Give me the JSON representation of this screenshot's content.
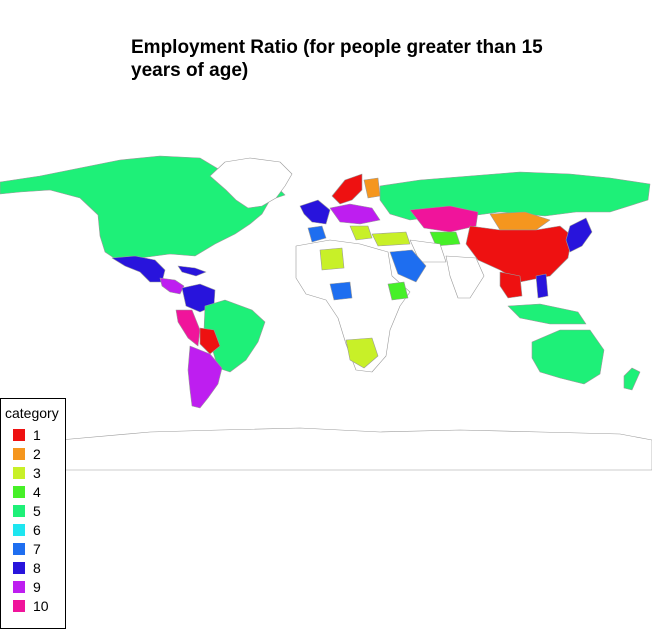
{
  "title": "Employment Ratio (for people greater than 15 years of age)",
  "legend": {
    "title": "category",
    "items": [
      {
        "label": "1",
        "color": "#ee1111"
      },
      {
        "label": "2",
        "color": "#f5961e"
      },
      {
        "label": "3",
        "color": "#c8f028"
      },
      {
        "label": "4",
        "color": "#46f028"
      },
      {
        "label": "5",
        "color": "#1ef078"
      },
      {
        "label": "6",
        "color": "#1ee6f0"
      },
      {
        "label": "7",
        "color": "#1e6ef0"
      },
      {
        "label": "8",
        "color": "#2814dc"
      },
      {
        "label": "9",
        "color": "#be1ef0"
      },
      {
        "label": "10",
        "color": "#f0149b"
      }
    ]
  },
  "regions": [
    {
      "name": "Canada / USA",
      "category": "5"
    },
    {
      "name": "Greenland",
      "category": "none"
    },
    {
      "name": "Mexico",
      "category": "8"
    },
    {
      "name": "Central America",
      "category": "9"
    },
    {
      "name": "Venezuela / Colombia",
      "category": "8"
    },
    {
      "name": "Brazil",
      "category": "5"
    },
    {
      "name": "Peru",
      "category": "10"
    },
    {
      "name": "Bolivia",
      "category": "1"
    },
    {
      "name": "Argentina / Chile",
      "category": "9"
    },
    {
      "name": "Russia",
      "category": "5"
    },
    {
      "name": "Kazakhstan",
      "category": "10"
    },
    {
      "name": "Mongolia",
      "category": "2"
    },
    {
      "name": "China",
      "category": "1"
    },
    {
      "name": "Japan",
      "category": "8"
    },
    {
      "name": "Saudi Arabia",
      "category": "7"
    },
    {
      "name": "South Africa",
      "category": "3"
    },
    {
      "name": "Nigeria",
      "category": "7"
    },
    {
      "name": "Australia",
      "category": "5"
    },
    {
      "name": "New Zealand",
      "category": "5"
    },
    {
      "name": "Antarctica",
      "category": "none"
    }
  ]
}
